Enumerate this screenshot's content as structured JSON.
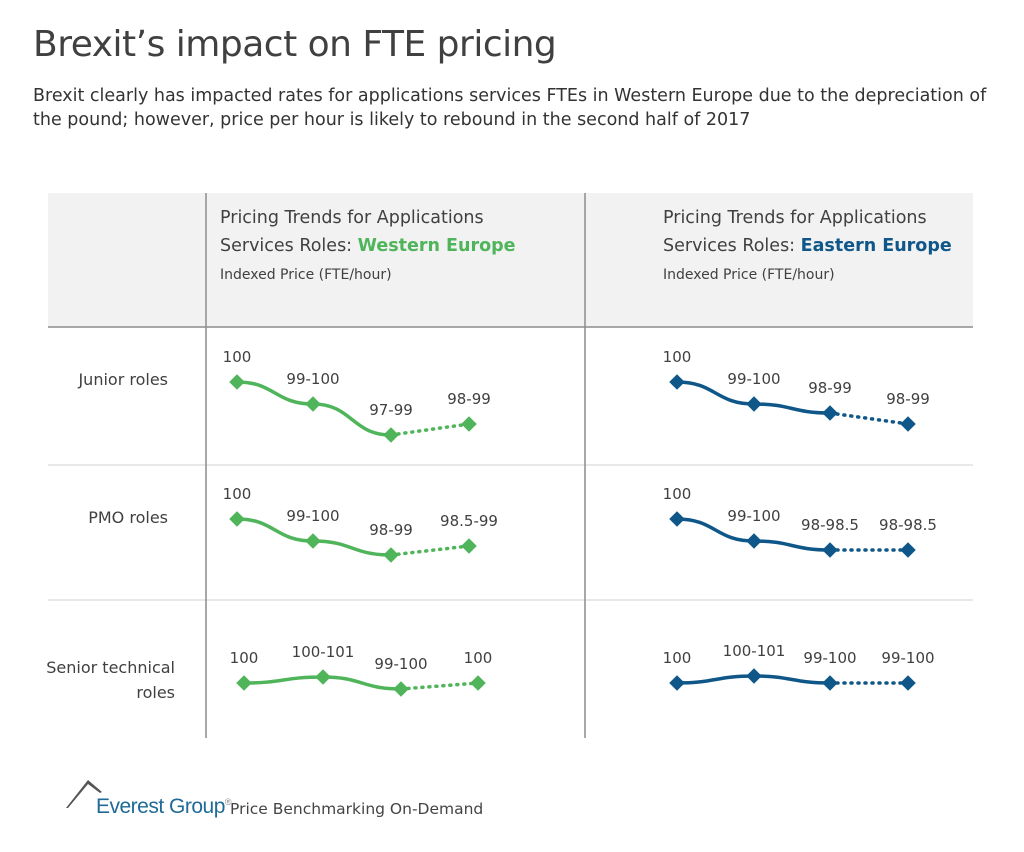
{
  "title": "Brexit’s impact on FTE pricing",
  "subtitle": "Brexit clearly has impacted rates for applications services FTEs in Western Europe due to the depreciation of the pound; however, price per hour is likely to rebound in the second half of 2017",
  "colors": {
    "western": "#4fb45a",
    "eastern": "#0f5788",
    "header_bg": "#f2f2f2"
  },
  "footer": {
    "brand": "Everest Group",
    "registered": "®",
    "tagline": "Price Benchmarking On-Demand"
  },
  "chart_data": [
    {
      "type": "line",
      "title_prefix": "Pricing Trends for Applications Services Roles: ",
      "region": "Western Europe",
      "ylabel": "Indexed Price (FTE/hour)",
      "rows": [
        {
          "name": "Junior roles",
          "labels": [
            "100",
            "99-100",
            "97-99",
            "98-99"
          ],
          "projected_last_segment": true
        },
        {
          "name": "PMO roles",
          "labels": [
            "100",
            "99-100",
            "98-99",
            "98.5-99"
          ],
          "projected_last_segment": true
        },
        {
          "name": "Senior technical roles",
          "labels": [
            "100",
            "100-101",
            "99-100",
            "100"
          ],
          "projected_last_segment": true
        }
      ]
    },
    {
      "type": "line",
      "title_prefix": "Pricing Trends for Applications Services Roles: ",
      "region": "Eastern Europe",
      "ylabel": "Indexed Price (FTE/hour)",
      "rows": [
        {
          "name": "Junior roles",
          "labels": [
            "100",
            "99-100",
            "98-99",
            "98-99"
          ],
          "projected_last_segment": true
        },
        {
          "name": "PMO roles",
          "labels": [
            "100",
            "99-100",
            "98-98.5",
            "98-98.5"
          ],
          "projected_last_segment": true
        },
        {
          "name": "Senior technical roles",
          "labels": [
            "100",
            "100-101",
            "99-100",
            "99-100"
          ],
          "projected_last_segment": true
        }
      ]
    }
  ]
}
